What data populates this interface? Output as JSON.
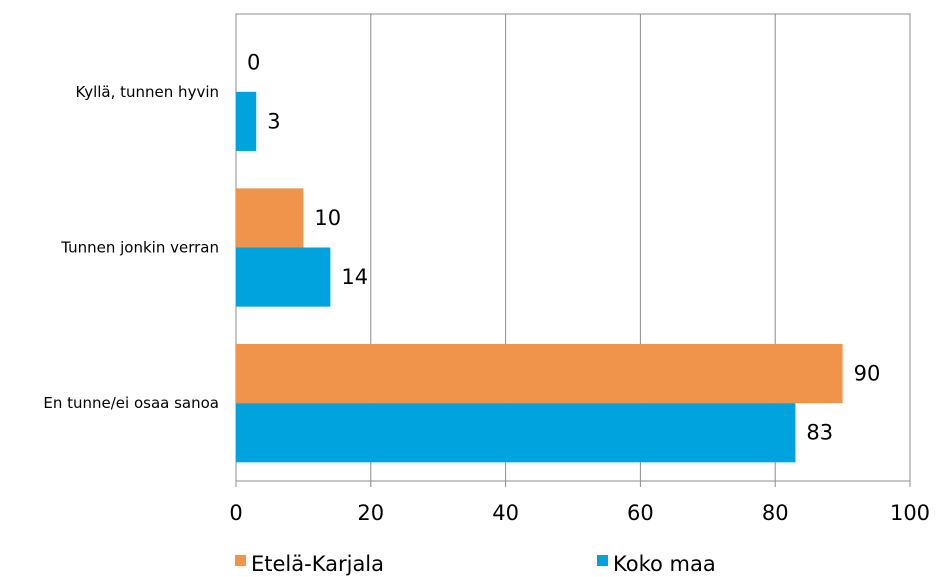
{
  "chart_data": {
    "type": "bar",
    "orientation": "horizontal",
    "categories": [
      "Kyllä, tunnen hyvin",
      "Tunnen jonkin verran",
      "En tunne/ei osaa sanoa"
    ],
    "series": [
      {
        "name": "Etelä-Karjala",
        "color": "#F0944B",
        "values": [
          0,
          10,
          90
        ]
      },
      {
        "name": "Koko maa",
        "color": "#00A3DD",
        "values": [
          3,
          14,
          83
        ]
      }
    ],
    "xlim": [
      0,
      100
    ],
    "xticks": [
      0,
      20,
      40,
      60,
      80,
      100
    ],
    "grid": "vertical",
    "legend": "bottom",
    "title": "",
    "xlabel": "",
    "ylabel": ""
  }
}
